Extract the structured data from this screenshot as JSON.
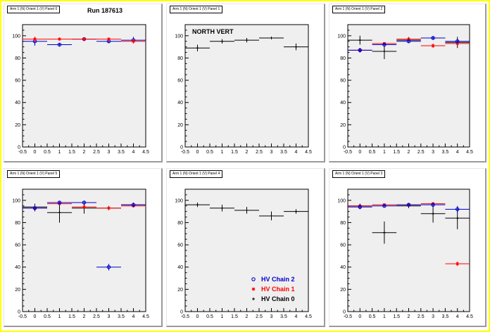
{
  "chart_data": [
    {
      "type": "scatter",
      "title": "Arm 1 (N) Orient 1 (V) Panel 0",
      "annotation": "Run 187613",
      "xlim": [
        -0.5,
        4.5
      ],
      "ylim": [
        0,
        110
      ],
      "xticks": [
        "-0.5",
        "0",
        "0.5",
        "1",
        "1.5",
        "2",
        "2.5",
        "3",
        "3.5",
        "4",
        "4.5"
      ],
      "yticks": [
        "0",
        "20",
        "40",
        "60",
        "80",
        "100"
      ],
      "grid": false,
      "series": [
        {
          "chain": 2,
          "color": "#0000cc",
          "marker": "circle",
          "x": [
            0,
            1,
            2,
            3,
            4
          ],
          "y": [
            95,
            92,
            97,
            95,
            96
          ],
          "yerr": [
            4,
            1.5,
            1,
            1.5,
            3
          ]
        },
        {
          "chain": 1,
          "color": "#ff0000",
          "marker": "star",
          "x": [
            0,
            1,
            2,
            3,
            4
          ],
          "y": [
            97,
            97,
            97,
            97,
            95
          ],
          "yerr": [
            2,
            1,
            1,
            1,
            2
          ]
        }
      ]
    },
    {
      "type": "scatter",
      "title": "Arm 1 (N) Orient 1 (V) Panel 1",
      "annotation": "NORTH VERT",
      "xlim": [
        -0.5,
        4.5
      ],
      "ylim": [
        0,
        110
      ],
      "xticks": [
        "-0.5",
        "0",
        "0.5",
        "1",
        "1.5",
        "2",
        "2.5",
        "3",
        "3.5",
        "4",
        "4.5"
      ],
      "yticks": [
        "0",
        "20",
        "40",
        "60",
        "80",
        "100"
      ],
      "grid": false,
      "series": [
        {
          "chain": 0,
          "color": "#000000",
          "marker": "cross",
          "x": [
            0,
            1,
            2,
            3,
            4
          ],
          "y": [
            89,
            95,
            96,
            98,
            90
          ],
          "yerr": [
            3,
            2,
            2,
            1,
            3
          ]
        }
      ]
    },
    {
      "type": "scatter",
      "title": "Arm 1 (N) Orient 1 (V) Panel 2",
      "xlim": [
        -0.5,
        4.5
      ],
      "ylim": [
        0,
        110
      ],
      "xticks": [
        "-0.5",
        "0",
        "0.5",
        "1",
        "1.5",
        "2",
        "2.5",
        "3",
        "3.5",
        "4",
        "4.5"
      ],
      "yticks": [
        "0",
        "20",
        "40",
        "60",
        "80",
        "100"
      ],
      "grid": false,
      "series": [
        {
          "chain": 0,
          "color": "#000000",
          "marker": "cross",
          "x": [
            0,
            1,
            2,
            3,
            4
          ],
          "y": [
            96,
            86,
            96,
            98,
            94
          ],
          "yerr": [
            4,
            7,
            2,
            1,
            5
          ]
        },
        {
          "chain": 1,
          "color": "#ff0000",
          "marker": "star",
          "x": [
            0,
            1,
            2,
            3,
            4
          ],
          "y": [
            87,
            93,
            97,
            91,
            93
          ],
          "yerr": [
            2,
            1,
            2,
            2,
            2
          ]
        },
        {
          "chain": 2,
          "color": "#0000cc",
          "marker": "circle",
          "x": [
            0,
            1,
            2,
            3,
            4
          ],
          "y": [
            87,
            92,
            95,
            98,
            95
          ],
          "yerr": [
            2,
            1.5,
            1,
            1,
            2
          ]
        }
      ]
    },
    {
      "type": "scatter",
      "title": "Arm 1 (N) Orient 1 (V) Panel 5",
      "xlim": [
        -0.5,
        4.5
      ],
      "ylim": [
        0,
        110
      ],
      "xticks": [
        "-0.5",
        "0",
        "0.5",
        "1",
        "1.5",
        "2",
        "2.5",
        "3",
        "3.5",
        "4",
        "4.5"
      ],
      "yticks": [
        "0",
        "20",
        "40",
        "60",
        "80",
        "100"
      ],
      "grid": false,
      "series": [
        {
          "chain": 0,
          "color": "#000000",
          "marker": "cross",
          "x": [
            0,
            1,
            2,
            3,
            4
          ],
          "y": [
            94,
            89,
            93,
            93,
            96
          ],
          "yerr": [
            3,
            9,
            5,
            2,
            2
          ]
        },
        {
          "chain": 1,
          "color": "#ff0000",
          "marker": "star",
          "x": [
            0,
            1,
            2,
            3,
            4
          ],
          "y": [
            93,
            97,
            94,
            93,
            95
          ],
          "yerr": [
            2,
            1,
            1,
            2,
            1
          ]
        },
        {
          "chain": 2,
          "color": "#0000cc",
          "marker": "circle",
          "x": [
            0,
            1,
            2,
            3,
            4
          ],
          "y": [
            93,
            98,
            98,
            40,
            96
          ],
          "yerr": [
            3,
            1,
            1,
            3,
            2
          ]
        }
      ]
    },
    {
      "type": "scatter",
      "title": "Arm 1 (N) Orient 1 (V) Panel 4",
      "xlim": [
        -0.5,
        4.5
      ],
      "ylim": [
        0,
        110
      ],
      "xticks": [
        "-0.5",
        "0",
        "0.5",
        "1",
        "1.5",
        "2",
        "2.5",
        "3",
        "3.5",
        "4",
        "4.5"
      ],
      "yticks": [
        "0",
        "20",
        "40",
        "60",
        "80",
        "100"
      ],
      "grid": false,
      "legend_position": "bottom-right",
      "legend": [
        {
          "label": "HV Chain 2",
          "color": "#0000cc",
          "marker": "circle"
        },
        {
          "label": "HV Chain 1",
          "color": "#ff0000",
          "marker": "star"
        },
        {
          "label": "HV Chain 0",
          "color": "#000000",
          "marker": "cross"
        }
      ],
      "series": [
        {
          "chain": 0,
          "color": "#000000",
          "marker": "cross",
          "x": [
            0,
            1,
            2,
            3,
            4
          ],
          "y": [
            96,
            93,
            91,
            86,
            90
          ],
          "yerr": [
            2,
            3,
            3,
            4,
            2
          ]
        }
      ]
    },
    {
      "type": "scatter",
      "title": "Arm 1 (N) Orient 1 (V) Panel 3",
      "xlim": [
        -0.5,
        4.5
      ],
      "ylim": [
        0,
        110
      ],
      "xticks": [
        "-0.5",
        "0",
        "0.5",
        "1",
        "1.5",
        "2",
        "2.5",
        "3",
        "3.5",
        "4",
        "4.5"
      ],
      "yticks": [
        "0",
        "20",
        "40",
        "60",
        "80",
        "100"
      ],
      "grid": false,
      "series": [
        {
          "chain": 0,
          "color": "#000000",
          "marker": "cross",
          "x": [
            0,
            1,
            2,
            3,
            4
          ],
          "y": [
            95,
            71,
            95,
            88,
            84
          ],
          "yerr": [
            2,
            10,
            2,
            8,
            10
          ]
        },
        {
          "chain": 1,
          "color": "#ff0000",
          "marker": "star",
          "x": [
            0,
            1,
            2,
            3,
            4
          ],
          "y": [
            95,
            96,
            96,
            97,
            43
          ],
          "yerr": [
            1,
            1,
            1,
            1,
            2
          ]
        },
        {
          "chain": 2,
          "color": "#0000cc",
          "marker": "circle",
          "x": [
            0,
            1,
            2,
            3,
            4
          ],
          "y": [
            94,
            95,
            96,
            96,
            92
          ],
          "yerr": [
            2,
            1,
            1,
            2,
            3
          ]
        }
      ]
    }
  ]
}
